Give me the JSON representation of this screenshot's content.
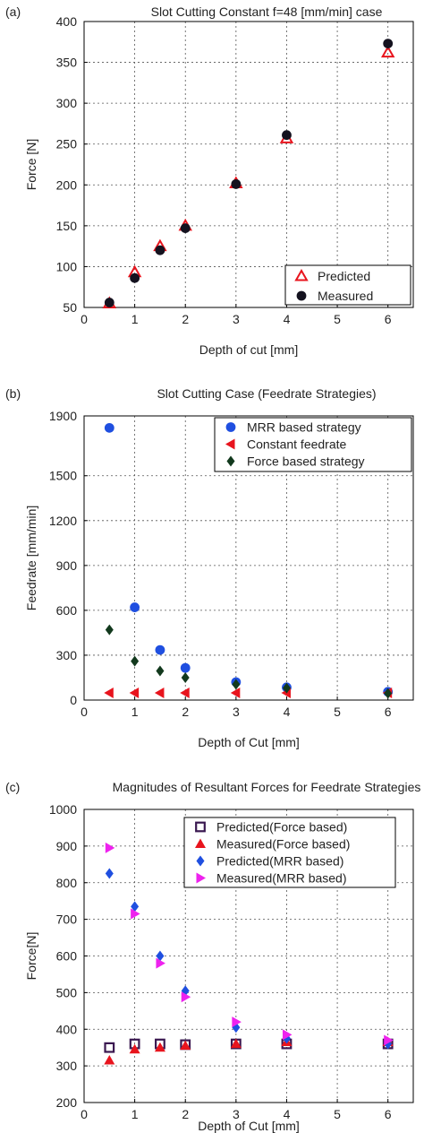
{
  "chart_data": [
    {
      "type": "scatter",
      "panel_label": "(a)",
      "title": "Slot Cutting Constant f=48 [mm/min] case",
      "xlabel": "Depth of cut [mm]",
      "ylabel": "Force [N]",
      "xlim": [
        0,
        6.5
      ],
      "ylim": [
        50,
        400
      ],
      "xticks": [
        0,
        1,
        2,
        3,
        4,
        5,
        6
      ],
      "yticks": [
        50,
        100,
        150,
        200,
        250,
        300,
        350,
        400
      ],
      "grid": true,
      "legend_position": "bottom-right",
      "series": [
        {
          "name": "Predicted",
          "marker": "triangle-open",
          "color": "#e8141d",
          "x": [
            0.5,
            1,
            1.5,
            2,
            3,
            4,
            6
          ],
          "y": [
            55,
            93,
            125,
            150,
            202,
            257,
            362
          ]
        },
        {
          "name": "Measured",
          "marker": "circle",
          "color": "#14121f",
          "x": [
            0.5,
            1,
            1.5,
            2,
            3,
            4,
            6
          ],
          "y": [
            56,
            86,
            120,
            147,
            201,
            261,
            373
          ]
        }
      ]
    },
    {
      "type": "scatter",
      "panel_label": "(b)",
      "title": "Slot Cutting Case (Feedrate Strategies)",
      "xlabel": "Depth of Cut [mm]",
      "ylabel": "Feedrate [mm/min]",
      "xlim": [
        0,
        6.5
      ],
      "ylim": [
        0,
        1900
      ],
      "xticks": [
        0,
        1,
        2,
        3,
        4,
        5,
        6
      ],
      "yticks": [
        0,
        300,
        600,
        900,
        1200,
        1500,
        1900
      ],
      "grid": true,
      "legend_position": "top-right",
      "series": [
        {
          "name": "MRR based strategy",
          "marker": "circle",
          "color": "#1f4fe0",
          "x": [
            0.5,
            1,
            1.5,
            2,
            3,
            4,
            6
          ],
          "y": [
            1820,
            620,
            335,
            215,
            120,
            85,
            55
          ]
        },
        {
          "name": "Constant feedrate",
          "marker": "triangle-left",
          "color": "#e8141d",
          "x": [
            0.5,
            1,
            1.5,
            2,
            3,
            4,
            6
          ],
          "y": [
            48,
            48,
            48,
            48,
            48,
            48,
            48
          ]
        },
        {
          "name": "Force based strategy",
          "marker": "diamond",
          "color": "#12391d",
          "x": [
            0.5,
            1,
            1.5,
            2,
            3,
            4,
            6
          ],
          "y": [
            470,
            260,
            195,
            150,
            105,
            80,
            45
          ]
        }
      ]
    },
    {
      "type": "scatter",
      "panel_label": "(c)",
      "title": "Magnitudes of Resultant Forces for Feedrate Strategies",
      "xlabel": "Depth of Cut [mm]",
      "ylabel": "Force[N]",
      "xlim": [
        0,
        6.5
      ],
      "ylim": [
        200,
        1000
      ],
      "xticks": [
        0,
        1,
        2,
        3,
        4,
        5,
        6
      ],
      "yticks": [
        200,
        300,
        400,
        500,
        600,
        700,
        800,
        900,
        1000
      ],
      "grid": true,
      "legend_position": "top-right",
      "series": [
        {
          "name": "Predicted(Force based)",
          "marker": "square",
          "color": "#3a1850",
          "x": [
            0.5,
            1,
            1.5,
            2,
            3,
            4,
            6
          ],
          "y": [
            350,
            360,
            360,
            358,
            360,
            360,
            360
          ]
        },
        {
          "name": "Measured(Force based)",
          "marker": "triangle-up",
          "color": "#e8141d",
          "x": [
            0.5,
            1,
            1.5,
            2,
            3,
            4,
            6
          ],
          "y": [
            315,
            345,
            350,
            355,
            360,
            365,
            365
          ]
        },
        {
          "name": "Predicted(MRR based)",
          "marker": "diamond",
          "color": "#1f4fe0",
          "x": [
            0.5,
            1,
            1.5,
            2,
            3,
            4,
            6
          ],
          "y": [
            825,
            735,
            600,
            505,
            405,
            375,
            360
          ]
        },
        {
          "name": "Measured(MRR based)",
          "marker": "triangle-right",
          "color": "#ee22ee",
          "x": [
            0.5,
            1,
            1.5,
            2,
            3,
            4,
            6
          ],
          "y": [
            895,
            715,
            580,
            488,
            420,
            385,
            370
          ]
        }
      ]
    }
  ]
}
